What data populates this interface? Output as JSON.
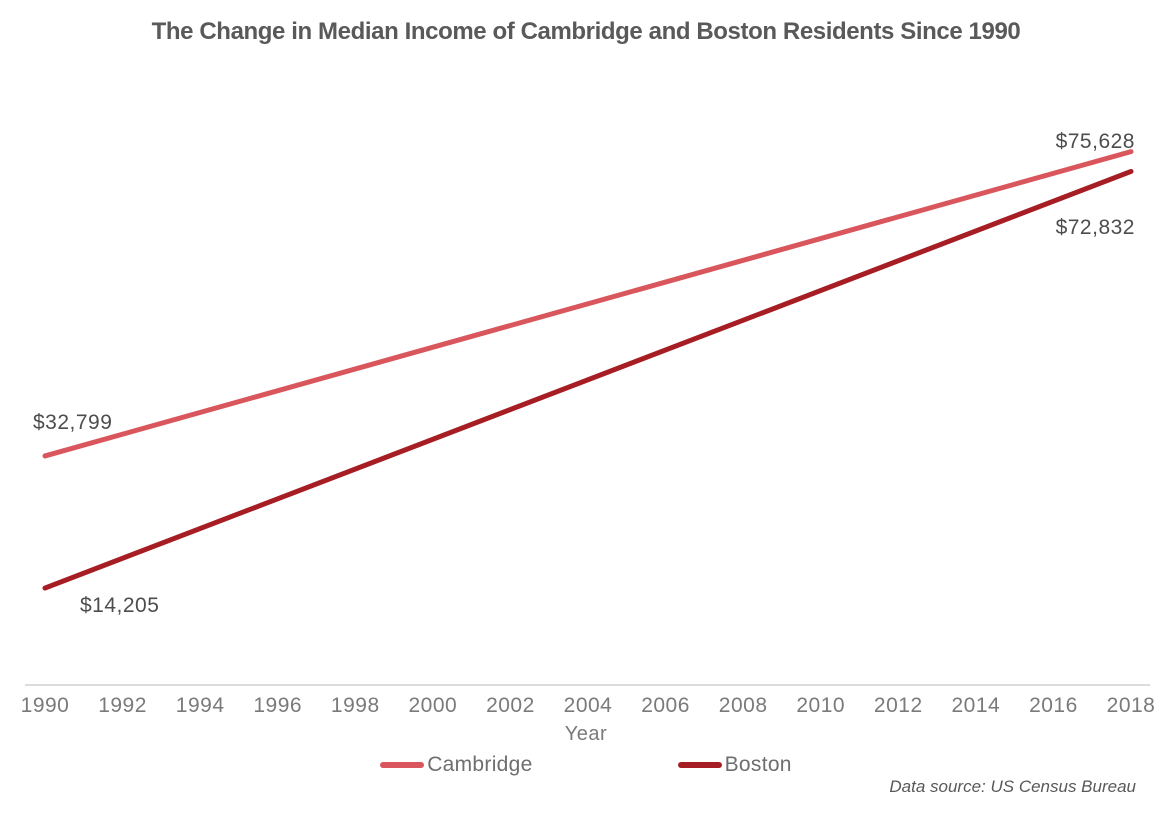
{
  "chart_data": {
    "type": "line",
    "title": "The Change in Median Income of Cambridge and Boston Residents Since 1990",
    "xlabel": "Year",
    "xlim": [
      1990,
      2018
    ],
    "ylim": [
      0,
      85000
    ],
    "x_ticks": [
      1990,
      1992,
      1994,
      1996,
      1998,
      2000,
      2002,
      2004,
      2006,
      2008,
      2010,
      2012,
      2014,
      2016,
      2018
    ],
    "grid": false,
    "legend_position": "bottom",
    "series": [
      {
        "name": "Cambridge",
        "color": "#D9575C",
        "x": [
          1990,
          2018
        ],
        "values": [
          32799,
          75628
        ],
        "start_label": "$32,799",
        "end_label": "$75,628"
      },
      {
        "name": "Boston",
        "color": "#A61E24",
        "x": [
          1990,
          2018
        ],
        "values": [
          14205,
          72832
        ],
        "start_label": "$14,205",
        "end_label": "$72,832"
      }
    ],
    "source_note": "Data source: US Census Bureau",
    "colors": {
      "title": "#595959",
      "axis_text": "#7A7A7A",
      "label_text": "#4D4D4D",
      "axis_line": "#DCDCDC"
    }
  }
}
